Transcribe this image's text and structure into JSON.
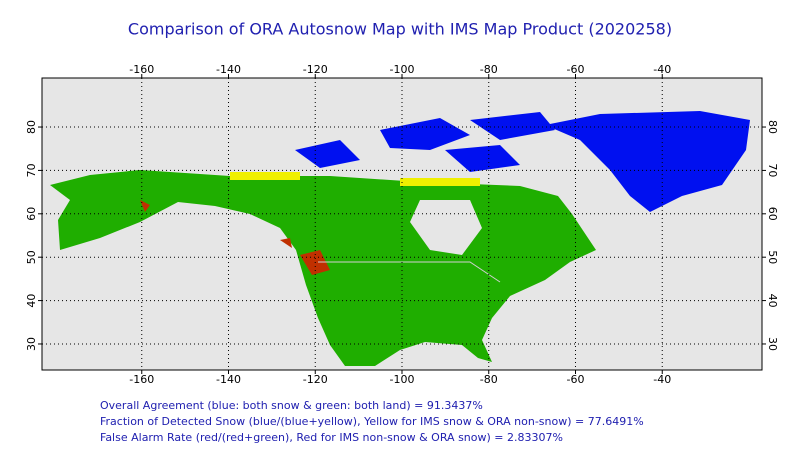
{
  "title": "Comparison of ORA Autosnow Map with IMS Map Product (2020258)",
  "map": {
    "lon_range": [
      -183,
      -17
    ],
    "lat_range": [
      24,
      91.3
    ],
    "lon_ticks": [
      -160,
      -140,
      -120,
      -100,
      -80,
      -60,
      -40
    ],
    "lat_ticks": [
      30,
      40,
      50,
      60,
      70,
      80
    ],
    "grid": true
  },
  "stats": [
    "Overall Agreement (blue: both snow & green: both land) =  91.3437%",
    "Fraction of Detected Snow (blue/(blue+yellow), Yellow for IMS snow & ORA non-snow) = 77.6491%",
    "False Alarm Rate (red/(red+green), Red for IMS non-snow & ORA snow)  =  2.83307%"
  ]
}
